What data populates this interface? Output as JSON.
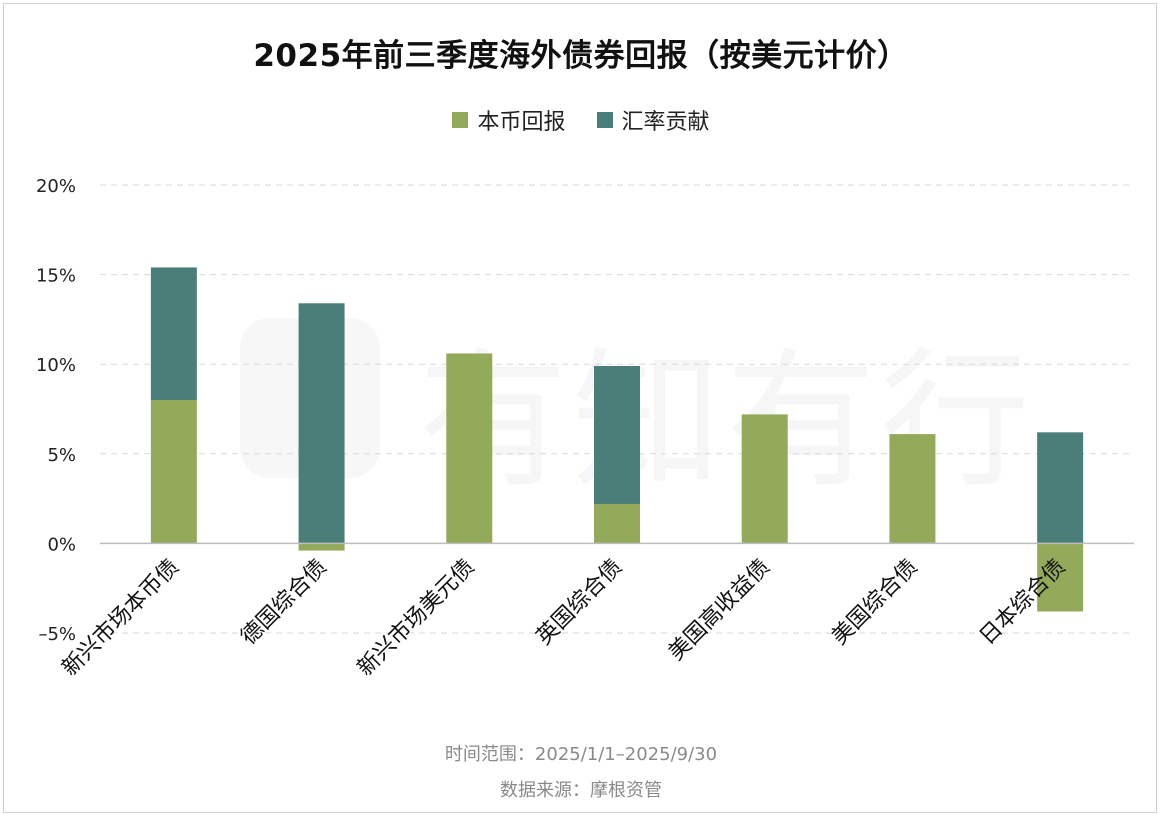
{
  "chart_data": {
    "type": "bar",
    "stacked": true,
    "title": "2025年前三季度海外债券回报（按美元计价）",
    "categories": [
      "新兴市场本币债",
      "德国综合债",
      "新兴市场美元债",
      "英国综合债",
      "美国高收益债",
      "美国综合债",
      "日本综合债"
    ],
    "series": [
      {
        "name": "本币回报",
        "color": "#94aa5b",
        "values": [
          8.0,
          -0.4,
          10.6,
          2.2,
          7.2,
          6.1,
          -3.8
        ]
      },
      {
        "name": "汇率贡献",
        "color": "#4a7f79",
        "values": [
          7.4,
          13.4,
          0,
          7.7,
          0,
          0,
          6.2
        ]
      }
    ],
    "ylim": [
      -5,
      20
    ],
    "yticks": [
      -5,
      0,
      5,
      10,
      15,
      20
    ],
    "ytick_labels": [
      "–5%",
      "0%",
      "5%",
      "10%",
      "15%",
      "20%"
    ],
    "xlabel": "",
    "ylabel": "",
    "grid": true,
    "legend": "top-center"
  },
  "footer": {
    "time_range": "时间范围：2025/1/1–2025/9/30",
    "source": "数据来源：摩根资管"
  },
  "watermark": "有知有行"
}
